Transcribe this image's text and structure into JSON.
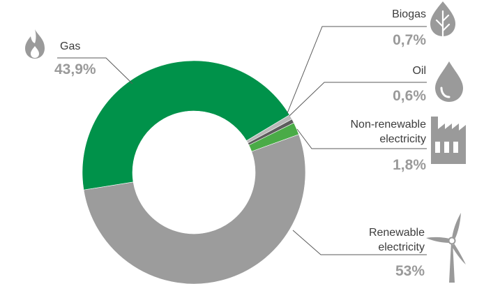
{
  "chart_data": {
    "type": "pie",
    "slices": [
      {
        "key": "biogas",
        "label": "Biogas",
        "value": 0.7,
        "value_label": "0,7%",
        "color": "#b9b9b9",
        "icon": "leaf-icon"
      },
      {
        "key": "oil",
        "label": "Oil",
        "value": 0.6,
        "value_label": "0,6%",
        "color": "#5d5d5d",
        "icon": "oil-drop-icon"
      },
      {
        "key": "nonren",
        "label_lines": [
          "Non-renewable",
          "electricity"
        ],
        "value": 1.8,
        "value_label": "1,8%",
        "color": "#4aab47",
        "icon": "factory-icon"
      },
      {
        "key": "renew",
        "label_lines": [
          "Renewable",
          "electricity"
        ],
        "value": 53,
        "value_label": "53%",
        "color": "#9c9c9c",
        "icon": "wind-turbine-icon"
      },
      {
        "key": "gas",
        "label": "Gas",
        "value": 43.9,
        "value_label": "43,9%",
        "color": "#00924a",
        "icon": "flame-icon"
      }
    ]
  },
  "colors": {
    "label_text": "#3c3c3c",
    "percent_text": "#9a9a9a",
    "icon": "#9a9a9a",
    "leader_line": "#5a5a5a"
  }
}
